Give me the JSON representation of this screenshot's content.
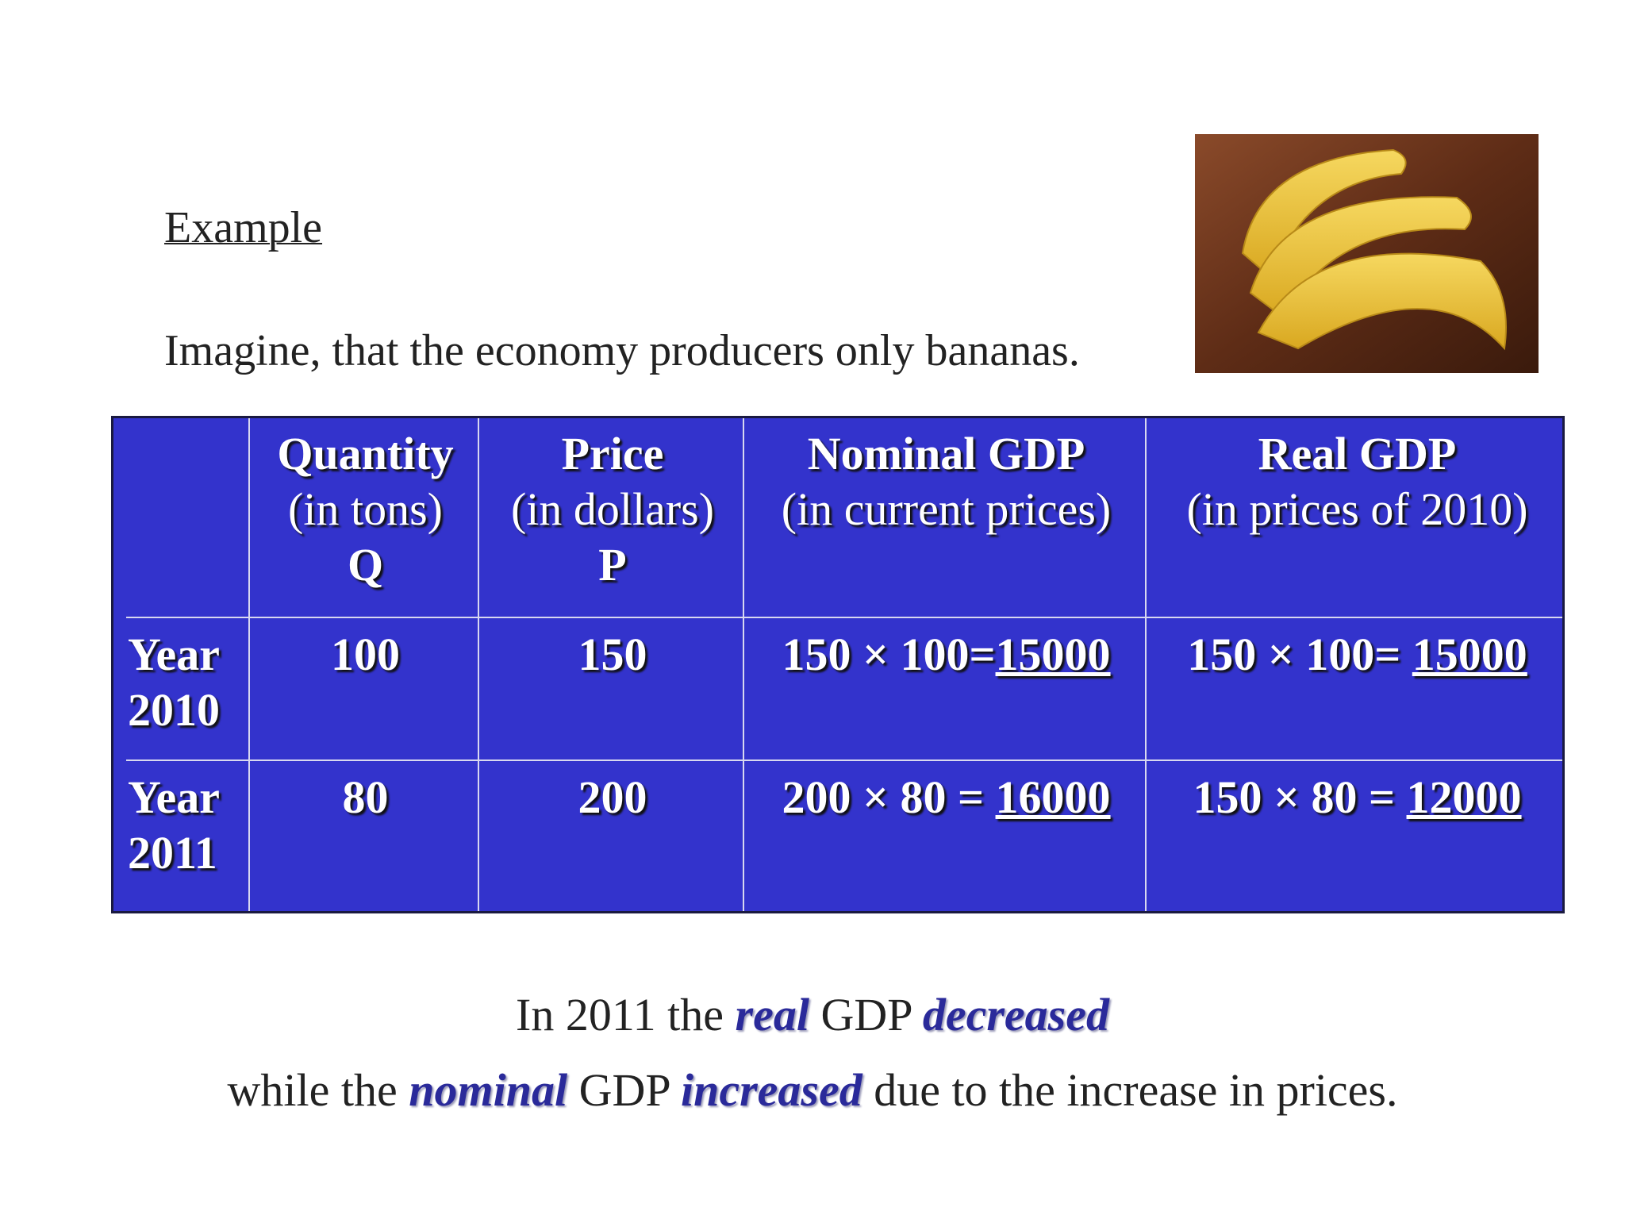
{
  "heading": "Example",
  "intro": "Imagine, that the economy producers only bananas.",
  "table": {
    "headers": [
      [
        "Quantity",
        "(in tons)",
        "Q"
      ],
      [
        "Price",
        "(in dollars)",
        "P"
      ],
      [
        "Nominal GDP",
        "(in current prices)"
      ],
      [
        "Real GDP",
        "(in prices of 2010)"
      ]
    ],
    "rows": [
      {
        "label": [
          "Year",
          "2010"
        ],
        "cells": [
          "100",
          "150",
          {
            "expr": "150 × 100=",
            "result": "15000"
          },
          {
            "expr": "150 × 100= ",
            "result": "15000"
          }
        ]
      },
      {
        "label": [
          "Year",
          "2011"
        ],
        "cells": [
          "80",
          "200",
          {
            "expr": "200 × 80 = ",
            "result": "16000"
          },
          {
            "expr": "150 × 80 = ",
            "result": "12000"
          }
        ]
      }
    ]
  },
  "conclusion": [
    [
      {
        "text": "In 2011 the "
      },
      {
        "text": "real",
        "em": true
      },
      {
        "text": " GDP "
      },
      {
        "text": "decreased",
        "em": true
      }
    ],
    [
      {
        "text": "while the "
      },
      {
        "text": "nominal",
        "em": true
      },
      {
        "text": " GDP "
      },
      {
        "text": "increased",
        "em": true
      },
      {
        "text": " due to the increase in prices."
      }
    ]
  ]
}
